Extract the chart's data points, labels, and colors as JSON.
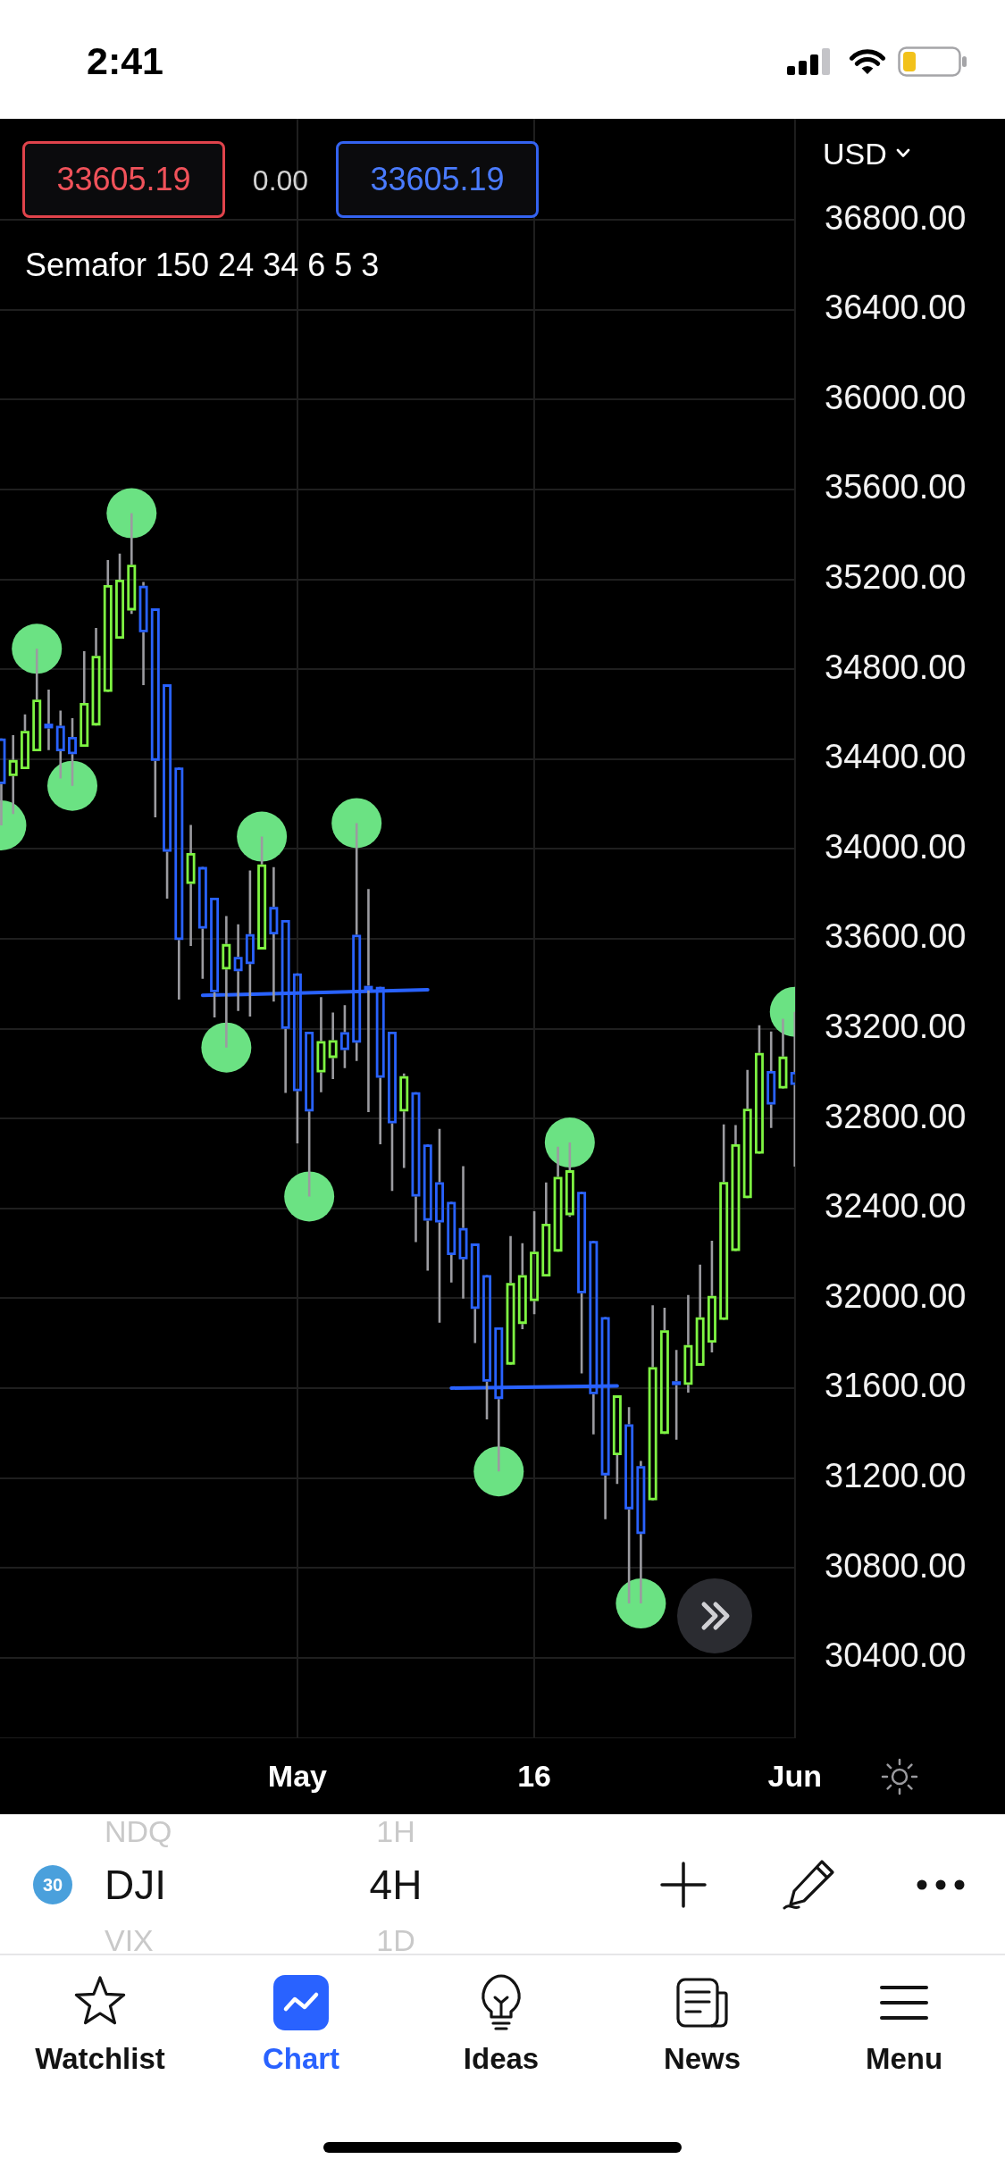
{
  "chart_data": {
    "type": "candlestick",
    "categories": [
      null,
      null,
      null,
      null,
      null,
      null,
      null,
      null,
      null,
      null,
      null,
      null,
      null,
      null,
      null,
      null,
      null,
      null,
      null,
      null,
      null,
      null,
      null,
      null,
      null,
      "May",
      null,
      null,
      null,
      null,
      null,
      null,
      null,
      null,
      null,
      null,
      null,
      null,
      null,
      null,
      null,
      null,
      null,
      null,
      null,
      "16",
      null,
      null,
      null,
      null,
      null,
      null,
      null,
      null,
      null,
      null,
      null,
      null,
      null,
      null,
      null,
      null,
      null,
      null,
      null,
      null,
      null,
      "Jun"
    ],
    "ohlc": [
      [
        34486,
        34486,
        34105,
        34294
      ],
      [
        34330,
        34506,
        34155,
        34390
      ],
      [
        34361,
        34599,
        34361,
        34520
      ],
      [
        34440,
        34891,
        34440,
        34659
      ],
      [
        34552,
        34709,
        34440,
        34542
      ],
      [
        34543,
        34616,
        34314,
        34440
      ],
      [
        34493,
        34582,
        34281,
        34427
      ],
      [
        34460,
        34880,
        34460,
        34644
      ],
      [
        34555,
        34984,
        34555,
        34854
      ],
      [
        34705,
        35286,
        34705,
        35169
      ],
      [
        34941,
        35315,
        34941,
        35193
      ],
      [
        35067,
        35494,
        35046,
        35259
      ],
      [
        35166,
        35188,
        34729,
        34970
      ],
      [
        35065,
        35065,
        34141,
        34398
      ],
      [
        34727,
        34727,
        33779,
        33993
      ],
      [
        34357,
        34357,
        33329,
        33600
      ],
      [
        33850,
        34107,
        33568,
        33976
      ],
      [
        33914,
        33914,
        33422,
        33651
      ],
      [
        33777,
        33777,
        33250,
        33368
      ],
      [
        33469,
        33701,
        33116,
        33571
      ],
      [
        33514,
        33664,
        33279,
        33461
      ],
      [
        33615,
        33904,
        33254,
        33493
      ],
      [
        33558,
        34055,
        33558,
        33925
      ],
      [
        33736,
        33919,
        33320,
        33625
      ],
      [
        33678,
        33678,
        32914,
        33205
      ],
      [
        33440,
        33440,
        32689,
        32927
      ],
      [
        33181,
        33181,
        32453,
        32837
      ],
      [
        33011,
        33340,
        32917,
        33139
      ],
      [
        33075,
        33272,
        32976,
        33143
      ],
      [
        33179,
        33305,
        33024,
        33110
      ],
      [
        33612,
        34115,
        33056,
        33143
      ],
      [
        33385,
        33821,
        32828,
        33377
      ],
      [
        33380,
        33380,
        32685,
        32987
      ],
      [
        33181,
        33181,
        32477,
        32784
      ],
      [
        32837,
        33000,
        32580,
        32983
      ],
      [
        32911,
        32911,
        32250,
        32458
      ],
      [
        32679,
        32679,
        32123,
        32351
      ],
      [
        32511,
        32754,
        31891,
        32343
      ],
      [
        32423,
        32431,
        32070,
        32198
      ],
      [
        32307,
        32588,
        31998,
        32179
      ],
      [
        32238,
        32238,
        31801,
        31958
      ],
      [
        32097,
        32097,
        31461,
        31634
      ],
      [
        31865,
        31865,
        31229,
        31557
      ],
      [
        31710,
        32277,
        31710,
        32062
      ],
      [
        31891,
        32245,
        31862,
        32097
      ],
      [
        31993,
        32387,
        31929,
        32202
      ],
      [
        32102,
        32515,
        32102,
        32326
      ],
      [
        32213,
        32674,
        32213,
        32535
      ],
      [
        32375,
        32693,
        32362,
        32564
      ],
      [
        32468,
        32468,
        31665,
        32028
      ],
      [
        32249,
        32249,
        31394,
        31578
      ],
      [
        31910,
        31910,
        31016,
        31217
      ],
      [
        31307,
        31567,
        31173,
        31562
      ],
      [
        31433,
        31515,
        30641,
        31066
      ],
      [
        31247,
        31276,
        30641,
        30956
      ],
      [
        31106,
        31969,
        31106,
        31688
      ],
      [
        31402,
        31958,
        31402,
        31852
      ],
      [
        31625,
        31770,
        31370,
        31619
      ],
      [
        31620,
        32014,
        31580,
        31786
      ],
      [
        31705,
        32149,
        31705,
        31909
      ],
      [
        31808,
        32256,
        31759,
        32005
      ],
      [
        31909,
        32774,
        31909,
        32512
      ],
      [
        32216,
        32771,
        32216,
        32680
      ],
      [
        32451,
        33016,
        32451,
        32838
      ],
      [
        32649,
        33215,
        32649,
        33086
      ],
      [
        33006,
        33187,
        32758,
        32868
      ],
      [
        32939,
        33244,
        32939,
        33070
      ],
      [
        33002,
        33275,
        32586,
        32955
      ]
    ],
    "colors": [
      "#2962ff",
      "#7ef542",
      "#7ef542",
      "#7ef542",
      "#2962ff",
      "#2962ff",
      "#2962ff",
      "#7ef542",
      "#7ef542",
      "#7ef542",
      "#7ef542",
      "#7ef542",
      "#2962ff",
      "#2962ff",
      "#2962ff",
      "#2962ff",
      "#7ef542",
      "#2962ff",
      "#2962ff",
      "#7ef542",
      "#2962ff",
      "#2962ff",
      "#7ef542",
      "#2962ff",
      "#2962ff",
      "#2962ff",
      "#2962ff",
      "#7ef542",
      "#7ef542",
      "#2962ff",
      "#2962ff",
      "#2962ff",
      "#2962ff",
      "#2962ff",
      "#7ef542",
      "#2962ff",
      "#2962ff",
      "#2962ff",
      "#2962ff",
      "#2962ff",
      "#2962ff",
      "#2962ff",
      "#2962ff",
      "#7ef542",
      "#7ef542",
      "#7ef542",
      "#7ef542",
      "#7ef542",
      "#7ef542",
      "#2962ff",
      "#2962ff",
      "#2962ff",
      "#7ef542",
      "#2962ff",
      "#2962ff",
      "#7ef542",
      "#7ef542",
      "#2962ff",
      "#7ef542",
      "#7ef542",
      "#7ef542",
      "#7ef542",
      "#7ef542",
      "#7ef542",
      "#7ef542",
      "#2962ff",
      "#7ef542",
      "#2962ff"
    ],
    "series": [
      {
        "type": "scatter",
        "color": "#6be283",
        "marker": "circle",
        "values": [
          34105,
          null,
          null,
          34891,
          null,
          null,
          34281,
          null,
          null,
          null,
          null,
          35494,
          null,
          null,
          null,
          null,
          null,
          null,
          null,
          33116,
          null,
          null,
          34055,
          null,
          null,
          null,
          32453,
          null,
          null,
          null,
          34115,
          null,
          null,
          null,
          null,
          null,
          null,
          null,
          null,
          null,
          null,
          null,
          31229,
          null,
          null,
          null,
          null,
          null,
          32693,
          null,
          null,
          null,
          null,
          null,
          30641,
          null,
          null,
          null,
          null,
          null,
          null,
          null,
          null,
          null,
          null,
          null,
          null,
          33275
        ]
      },
      {
        "type": "line",
        "color": "#2962ff",
        "marker": "none",
        "values": [
          null,
          null,
          null,
          null,
          null,
          null,
          null,
          null,
          null,
          null,
          null,
          null,
          null,
          null,
          null,
          null,
          null,
          33348,
          null,
          null,
          null,
          null,
          null,
          null,
          null,
          null,
          null,
          null,
          null,
          null,
          null,
          null,
          null,
          null,
          null,
          null,
          33373,
          null,
          null,
          null,
          null,
          null,
          null,
          null,
          null,
          null,
          null,
          null,
          null,
          null,
          null,
          null,
          null,
          null,
          null,
          null,
          null,
          null,
          null,
          null,
          null,
          null,
          null,
          null,
          null,
          null,
          null,
          null
        ]
      },
      {
        "type": "line",
        "color": "#2962ff",
        "marker": "none",
        "values": [
          null,
          null,
          null,
          null,
          null,
          null,
          null,
          null,
          null,
          null,
          null,
          null,
          null,
          null,
          null,
          null,
          null,
          null,
          null,
          null,
          null,
          null,
          null,
          null,
          null,
          null,
          null,
          null,
          null,
          null,
          null,
          null,
          null,
          null,
          null,
          null,
          null,
          null,
          31600,
          null,
          null,
          null,
          null,
          null,
          null,
          null,
          null,
          null,
          null,
          null,
          null,
          null,
          31610,
          null,
          null,
          null,
          null,
          null,
          null,
          null,
          null,
          null,
          null,
          null,
          null,
          null,
          null,
          null
        ]
      }
    ],
    "ylim": [
      30045,
      37250
    ],
    "yticks": [
      {
        "value": 30400,
        "label": "30400.00"
      },
      {
        "value": 30800,
        "label": "30800.00"
      },
      {
        "value": 31200,
        "label": "31200.00"
      },
      {
        "value": 31600,
        "label": "31600.00"
      },
      {
        "value": 32000,
        "label": "32000.00"
      },
      {
        "value": 32400,
        "label": "32400.00"
      },
      {
        "value": 32800,
        "label": "32800.00"
      },
      {
        "value": 33200,
        "label": "33200.00"
      },
      {
        "value": 33600,
        "label": "33600.00"
      },
      {
        "value": 34000,
        "label": "34000.00"
      },
      {
        "value": 34400,
        "label": "34400.00"
      },
      {
        "value": 34800,
        "label": "34800.00"
      },
      {
        "value": 35200,
        "label": "35200.00"
      },
      {
        "value": 35600,
        "label": "35600.00"
      },
      {
        "value": 36000,
        "label": "36000.00"
      },
      {
        "value": 36400,
        "label": "36400.00"
      },
      {
        "value": 36800,
        "label": "36800.00"
      }
    ],
    "grid": true,
    "annotations": [
      "2:41",
      "33605.19",
      "0.00",
      "33605.19",
      "Semafor 150 24 34 6 5 3",
      "USD",
      "NDQ",
      "DJI",
      "VIX",
      "30",
      "1H",
      "4H",
      "1D",
      "Watchlist",
      "Chart",
      "Ideas",
      "News",
      "Menu"
    ]
  }
}
